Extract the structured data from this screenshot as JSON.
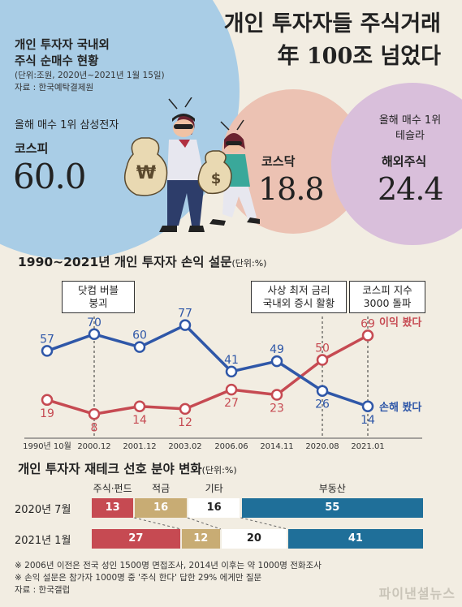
{
  "headline": {
    "line1": "개인 투자자들 주식거래",
    "line2": "年 100조 넘었다"
  },
  "net_buying": {
    "title_line1": "개인 투자자 국내외",
    "title_line2": "주식 순매수 현황",
    "unit": "(단위:조원, 2020년~2021년 1월 15일)",
    "source": "자료 : 한국예탁결제원",
    "kospi": {
      "note": "올해 매수 1위 삼성전자",
      "label": "코스피",
      "value": "60.0"
    },
    "kosdaq": {
      "label": "코스닥",
      "value": "18.8"
    },
    "overseas": {
      "note_line1": "올해 매수 1위",
      "note_line2": "테슬라",
      "label": "해외주식",
      "value": "24.4"
    },
    "colors": {
      "kospi": "#a9cde6",
      "kosdaq": "#ecc2b3",
      "overseas": "#d9bfdb"
    }
  },
  "survey": {
    "title": "1990~2021년 개인 투자자 손익 설문",
    "unit": "(단위:%)",
    "callouts": [
      {
        "line1": "닷컴 버블",
        "line2": "붕괴"
      },
      {
        "line1": "사상 최저 금리",
        "line2": "국내외 증시 활황"
      },
      {
        "line1": "코스피 지수",
        "line2": "3000 돌파"
      }
    ],
    "legend_profit": "이익 봤다",
    "legend_loss": "손해 봤다"
  },
  "preference": {
    "title": "개인 투자자 재테크 선호 분야 변화",
    "unit": "(단위:%)",
    "categories": [
      "주식·펀드",
      "적금",
      "기타",
      "부동산"
    ],
    "rows": [
      {
        "label": "2020년 7월",
        "values": [
          13,
          16,
          16,
          55
        ]
      },
      {
        "label": "2021년 1월",
        "values": [
          27,
          12,
          20,
          41
        ]
      }
    ],
    "colors": [
      "#c64a52",
      "#c8ac74",
      "#ffffff",
      "#1f6f99"
    ]
  },
  "footnotes": {
    "note1": "※ 2006년 이전은 전국 성인 1500명 면접조사, 2014년 이후는 약 1000명 전화조사",
    "note2": "※ 손익 설문은 참가자 1000명 중 '주식 한다' 답한 29% 에게만 질문",
    "source": "자료 : 한국갤럽",
    "watermark": "파이낸셜뉴스"
  },
  "chart_data": [
    {
      "type": "line",
      "title": "1990~2021년 개인 투자자 손익 설문",
      "ylabel": "%",
      "categories": [
        "1990년 10월",
        "2000.12",
        "2001.12",
        "2003.02",
        "2006.06",
        "2014.11",
        "2020.08",
        "2021.01"
      ],
      "series": [
        {
          "name": "이익 봤다",
          "color": "#c64a52",
          "values": [
            19,
            8,
            14,
            12,
            27,
            23,
            50,
            69
          ]
        },
        {
          "name": "손해 봤다",
          "color": "#2f57a8",
          "values": [
            57,
            70,
            60,
            77,
            41,
            49,
            26,
            14
          ]
        }
      ],
      "ylim": [
        0,
        90
      ],
      "grid": false,
      "legend": "right"
    },
    {
      "type": "bar",
      "title": "개인 투자자 재테크 선호 분야 변화",
      "categories": [
        "2020년 7월",
        "2021년 1월"
      ],
      "series": [
        {
          "name": "주식·펀드",
          "values": [
            13,
            27
          ]
        },
        {
          "name": "적금",
          "values": [
            16,
            12
          ]
        },
        {
          "name": "기타",
          "values": [
            16,
            20
          ]
        },
        {
          "name": "부동산",
          "values": [
            55,
            41
          ]
        }
      ],
      "stacked": true
    }
  ]
}
